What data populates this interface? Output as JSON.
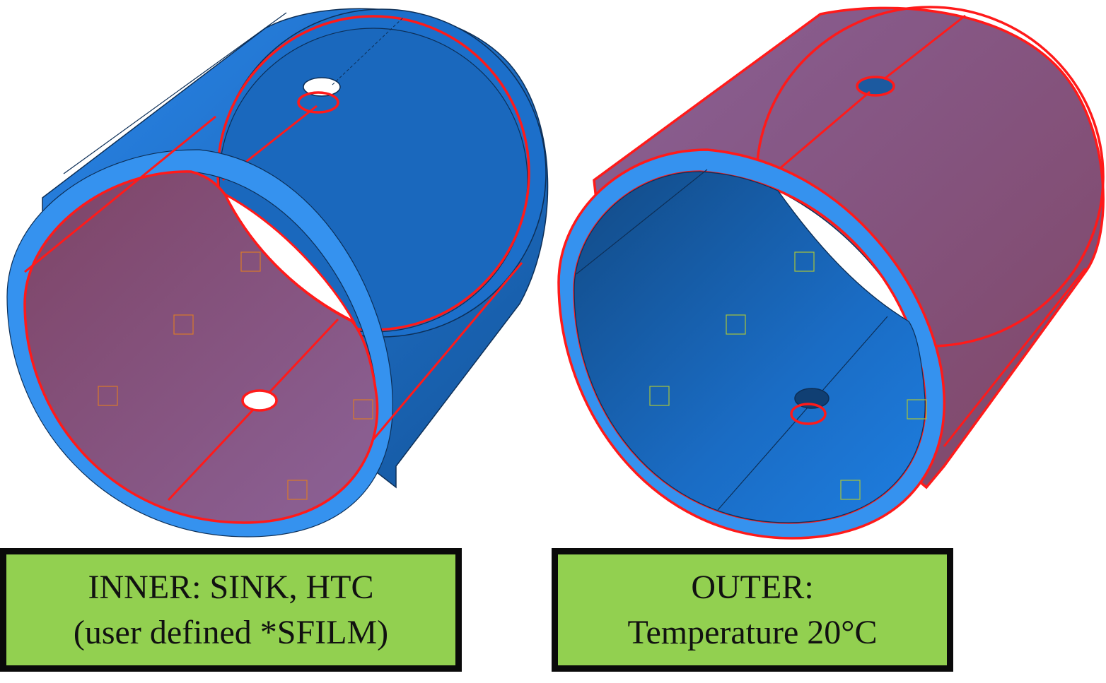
{
  "labels": {
    "inner": {
      "line1": "INNER: SINK, HTC",
      "line2": "(user defined *SFILM)"
    },
    "outer": {
      "line1": "OUTER:",
      "line2": "Temperature 20°C"
    }
  },
  "colors": {
    "part_blue": "#1e7ce0",
    "part_blue_dark": "#13579f",
    "ring_face": "#3391ef",
    "selected_surface": "#8b5a8f",
    "selection_edge": "#ff1a1a",
    "label_fill": "#92d050",
    "label_border": "#0a0a0a"
  }
}
